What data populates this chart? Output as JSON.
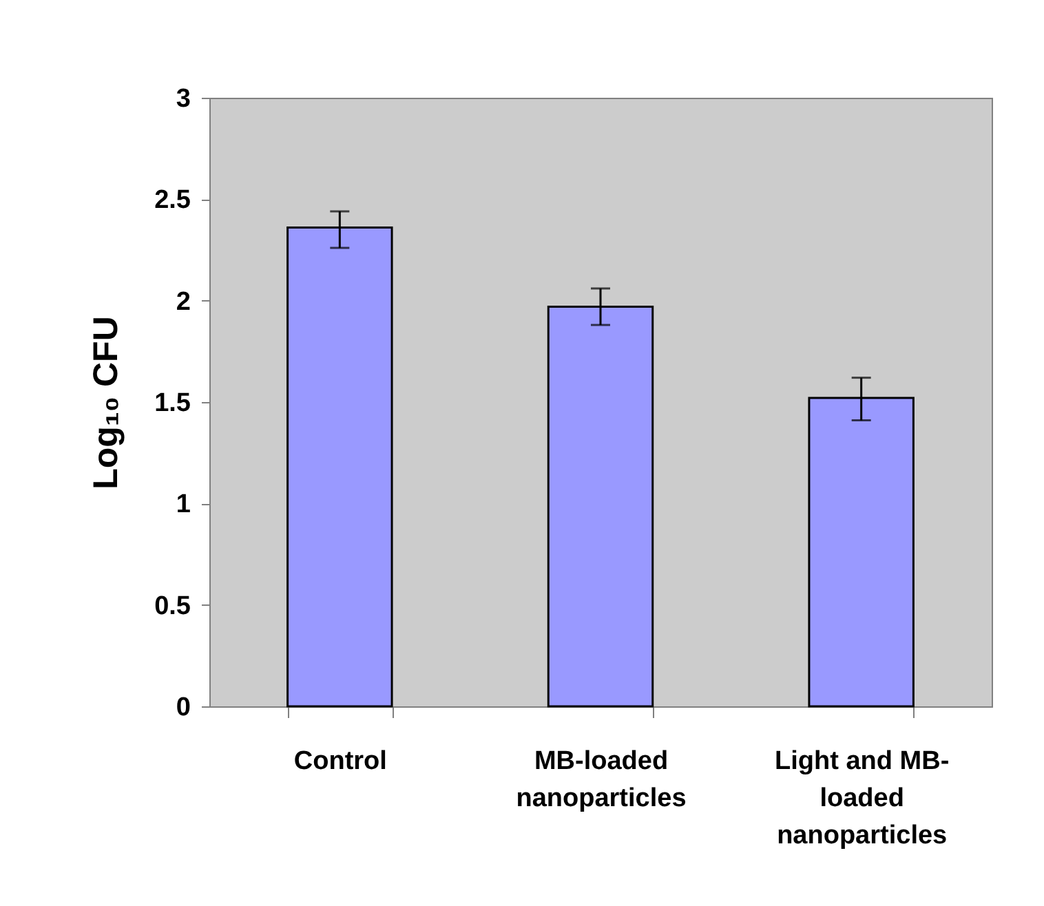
{
  "chart_data": {
    "type": "bar",
    "ylabel": "Log₁₀ CFU",
    "categories": [
      "Control",
      "MB-loaded nanoparticles",
      "Light and MB-loaded nanoparticles"
    ],
    "values": [
      2.36,
      1.97,
      1.52
    ],
    "errors": [
      [
        2.26,
        2.44
      ],
      [
        1.88,
        2.06
      ],
      [
        1.41,
        1.62
      ]
    ],
    "color": "#9999ff",
    "ylim": [
      0,
      3
    ],
    "yticks": [
      0,
      0.5,
      1,
      1.5,
      2,
      2.5,
      3
    ],
    "grid": false
  }
}
